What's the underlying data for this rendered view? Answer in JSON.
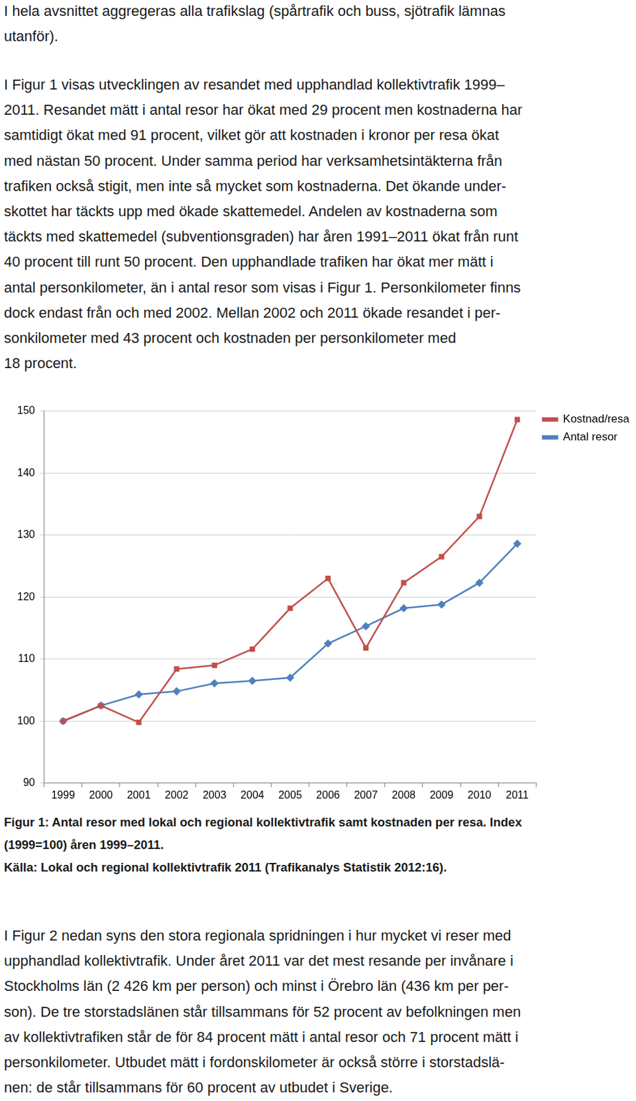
{
  "paragraphs_top": [
    [
      "I hela avsnittet aggregeras alla trafikslag (spårtrafik och buss, sjötrafik lämnas",
      "utanför)."
    ],
    [
      "I Figur 1 visas utvecklingen av resandet med upphandlad kollektivtrafik 1999–",
      "2011. Resandet mätt i antal resor har ökat med 29 procent men kostnaderna har",
      "samtidigt ökat med 91 procent, vilket gör att kostnaden i kronor per resa ökat",
      "med nästan 50 procent. Under samma period har verksamhetsintäkterna från",
      "trafiken också stigit, men inte så mycket som kostnaderna. Det ökande under-",
      "skottet har täckts upp med ökade skattemedel. Andelen av kostnaderna som",
      "täckts med skattemedel (subventionsgraden) har åren 1991–2011 ökat från runt",
      "40 procent till runt 50 procent. Den upphandlade trafiken har ökat mer mätt i",
      "antal personkilometer, än i antal resor som visas i Figur 1. Personkilometer finns",
      "dock endast från och med 2002. Mellan 2002 och 2011 ökade resandet i per-",
      "sonkilometer med 43 procent och kostnaden per personkilometer med",
      "18 procent."
    ]
  ],
  "chart_data": {
    "type": "line",
    "categories": [
      "1999",
      "2000",
      "2001",
      "2002",
      "2003",
      "2004",
      "2005",
      "2006",
      "2007",
      "2008",
      "2009",
      "2010",
      "2011"
    ],
    "series": [
      {
        "name": "Kostnad/resa",
        "color": "#c0504d",
        "marker": "square",
        "line_style": "solid",
        "values": [
          100,
          102.5,
          99.8,
          108.4,
          109.0,
          111.6,
          118.2,
          123.0,
          111.8,
          122.3,
          126.5,
          133.0,
          148.6
        ]
      },
      {
        "name": "Antal resor",
        "color": "#4f81bd",
        "marker": "diamond",
        "line_style": "solid",
        "values": [
          100,
          102.5,
          104.3,
          104.8,
          106.1,
          106.5,
          107.0,
          112.5,
          115.3,
          118.2,
          118.8,
          122.3,
          128.6
        ]
      }
    ],
    "ylim": [
      90,
      150
    ],
    "yticks": [
      90,
      100,
      110,
      120,
      130,
      140,
      150
    ],
    "grid": true,
    "legend": "right"
  },
  "caption": [
    "Figur 1: Antal resor med lokal och regional kollektivtrafik samt kostnaden per resa. Index",
    "(1999=100) åren 1999–2011.",
    "Källa: Lokal och regional kollektivtrafik 2011 (Trafikanalys Statistik 2012:16)."
  ],
  "paragraphs_bottom": [
    [
      "I Figur 2 nedan syns den stora regionala spridningen i hur mycket vi reser med",
      "upphandlad kollektivtrafik. Under året 2011 var det mest resande per invånare i",
      "Stockholms län (2 426 km per person) och minst i Örebro län (436 km per per-",
      "son). De tre storstadslänen står tillsammans för 52 procent av befolkningen men",
      "av kollektivtrafiken står de för 84 procent mätt i antal resor och 71 procent mätt i",
      "personkilometer. Utbudet mätt i fordonskilometer är också större i storstadslä-",
      "nen: de står tillsammans för 60 procent av utbudet i Sverige."
    ]
  ]
}
